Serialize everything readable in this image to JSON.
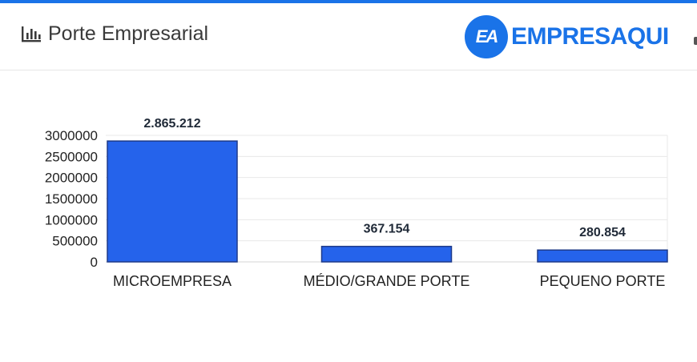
{
  "header": {
    "title": "Porte Empresarial",
    "title_icon": "bar-chart-icon",
    "brand_logo_letters": "EA",
    "brand_name": "EMPRESAQUI",
    "accent_color": "#1a73e8"
  },
  "chart_data": {
    "type": "bar",
    "categories": [
      "MICROEMPRESA",
      "MÉDIO/GRANDE PORTE",
      "PEQUENO PORTE"
    ],
    "values": [
      2865212,
      367154,
      280854
    ],
    "data_labels": [
      "2.865.212",
      "367.154",
      "280.854"
    ],
    "yticks": [
      "0",
      "500000",
      "1000000",
      "1500000",
      "2000000",
      "2500000",
      "3000000"
    ],
    "ylim": [
      0,
      3000000
    ],
    "grid": true,
    "legend": "none",
    "bar_color": "#2563eb",
    "bar_border_color": "#1e3a8a"
  }
}
